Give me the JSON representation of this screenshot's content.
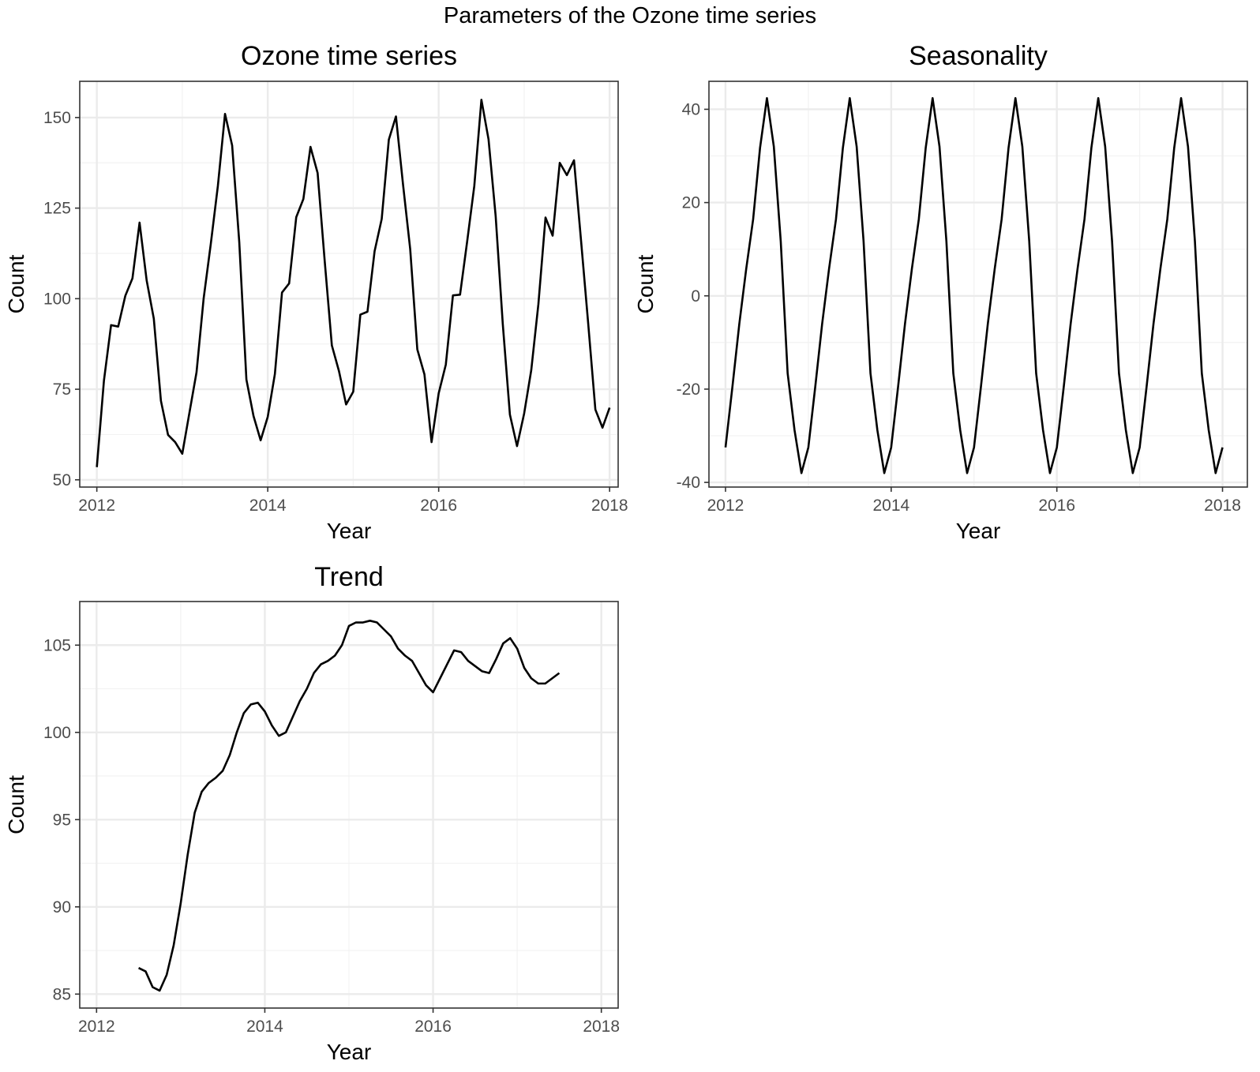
{
  "figure": {
    "suptitle": "Parameters of the Ozone time series"
  },
  "chart_data": [
    {
      "type": "line",
      "title": "Ozone time series",
      "xlabel": "Year",
      "ylabel": "Count",
      "xlim": [
        2011.8,
        2018.1
      ],
      "ylim": [
        48,
        160
      ],
      "xticks": [
        2012,
        2014,
        2016,
        2018
      ],
      "xtick_labels": [
        "2012",
        "2014",
        "2016",
        "2018"
      ],
      "yticks": [
        50,
        75,
        100,
        125,
        150
      ],
      "ytick_labels": [
        "50",
        "75",
        "100",
        "125",
        "150"
      ],
      "grid": true,
      "color": "#000000",
      "x_start": 2012,
      "x_step": 0.0833333,
      "values": [
        53.5,
        77.4,
        92.7,
        92.3,
        100.8,
        105.6,
        121.0,
        105.0,
        94.5,
        71.8,
        62.4,
        60.4,
        57.2,
        68.5,
        79.7,
        100.1,
        115.1,
        131.2,
        151.0,
        142.3,
        115.6,
        77.7,
        67.6,
        60.9,
        67.4,
        79.2,
        101.7,
        104.2,
        122.5,
        127.5,
        141.9,
        134.7,
        110.3,
        87.1,
        80.0,
        70.8,
        74.3,
        95.6,
        96.4,
        113.1,
        122.0,
        143.9,
        150.3,
        131.4,
        113.7,
        86.0,
        79.1,
        60.4,
        73.9,
        81.8,
        100.9,
        101.1,
        115.8,
        131.1,
        154.9,
        144.0,
        122.8,
        93.0,
        68.0,
        59.3,
        68.3,
        80.3,
        98.5,
        122.4,
        117.4,
        137.5,
        134.1,
        138.2,
        115.8,
        93.0,
        69.4,
        64.4,
        69.9
      ]
    },
    {
      "type": "line",
      "title": "Seasonality",
      "xlabel": "Year",
      "ylabel": "Count",
      "xlim": [
        2011.8,
        2018.3
      ],
      "ylim": [
        -41,
        46
      ],
      "xticks": [
        2012,
        2014,
        2016,
        2018
      ],
      "xtick_labels": [
        "2012",
        "2014",
        "2016",
        "2018"
      ],
      "yticks": [
        -40,
        -20,
        0,
        20,
        40
      ],
      "ytick_labels": [
        "-40",
        "-20",
        "0",
        "20",
        "40"
      ],
      "grid": true,
      "color": "#000000",
      "x_start": 2012,
      "x_step": 0.0833333,
      "pattern": [
        -32.5,
        -19.5,
        -6.0,
        5.8,
        16.4,
        31.7,
        42.4,
        32.0,
        11.7,
        -16.6,
        -28.8,
        -38.0
      ],
      "cycles": 6,
      "final_value": -32.5
    },
    {
      "type": "line",
      "title": "Trend",
      "xlabel": "Year",
      "ylabel": "Count",
      "xlim": [
        2011.8,
        2018.2
      ],
      "ylim": [
        84.2,
        107.5
      ],
      "xticks": [
        2012,
        2014,
        2016,
        2018
      ],
      "xtick_labels": [
        "2012",
        "2014",
        "2016",
        "2018"
      ],
      "yticks": [
        85,
        90,
        95,
        100,
        105
      ],
      "ytick_labels": [
        "85",
        "90",
        "95",
        "100",
        "105"
      ],
      "grid": true,
      "color": "#000000",
      "x_start": 2012.5,
      "x_step": 0.0833333,
      "values": [
        86.5,
        86.3,
        85.4,
        85.2,
        86.1,
        87.8,
        90.2,
        93.0,
        95.4,
        96.6,
        97.1,
        97.4,
        97.8,
        98.7,
        100.0,
        101.1,
        101.6,
        101.7,
        101.2,
        100.4,
        99.8,
        100.0,
        100.9,
        101.8,
        102.5,
        103.4,
        103.9,
        104.1,
        104.4,
        105.0,
        106.1,
        106.3,
        106.3,
        106.4,
        106.3,
        105.9,
        105.5,
        104.8,
        104.4,
        104.1,
        103.4,
        102.7,
        102.3,
        103.1,
        103.9,
        104.7,
        104.6,
        104.1,
        103.8,
        103.5,
        103.4,
        104.2,
        105.1,
        105.4,
        104.8,
        103.7,
        103.1,
        102.8,
        102.8,
        103.1,
        103.4
      ]
    }
  ]
}
